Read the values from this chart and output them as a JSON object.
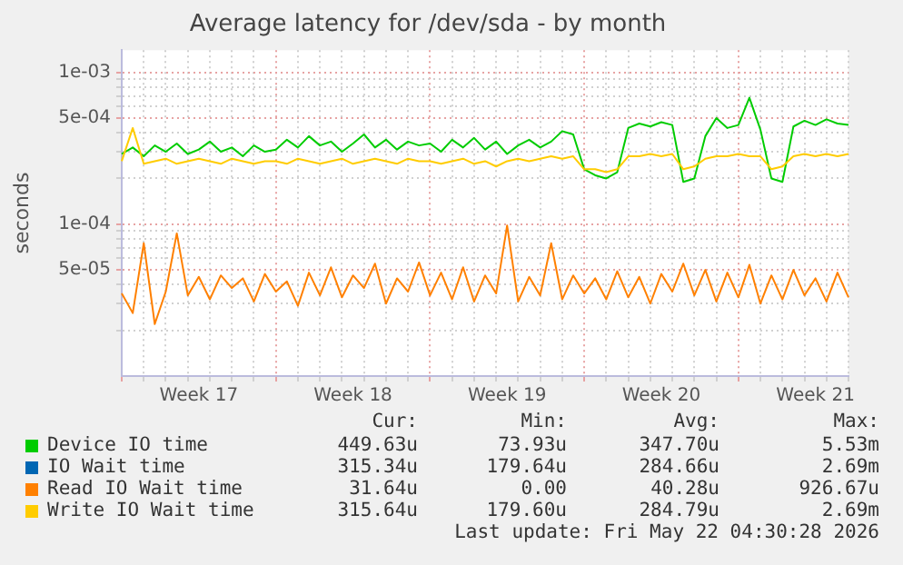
{
  "chart_data": {
    "type": "line",
    "title": "Average latency for /dev/sda - by month",
    "ylabel": "seconds",
    "categories": [
      null,
      null,
      null,
      null,
      null,
      null,
      null,
      "Week 17",
      null,
      null,
      null,
      null,
      null,
      null,
      null,
      null,
      null,
      null,
      null,
      null,
      null,
      "Week 18",
      null,
      null,
      null,
      null,
      null,
      null,
      null,
      null,
      null,
      null,
      null,
      null,
      null,
      "Week 19",
      null,
      null,
      null,
      null,
      null,
      null,
      null,
      null,
      null,
      null,
      null,
      null,
      null,
      "Week 20",
      null,
      null,
      null,
      null,
      null,
      null,
      null,
      null,
      null,
      null,
      null,
      null,
      null,
      "Week 21",
      null,
      null,
      null
    ],
    "series": [
      {
        "name": "Device IO time",
        "color": "#00cc00",
        "values": [
          0.00029,
          0.00032,
          0.00028,
          0.00033,
          0.0003,
          0.00034,
          0.00029,
          0.00031,
          0.00035,
          0.0003,
          0.00032,
          0.00028,
          0.00033,
          0.0003,
          0.00031,
          0.00036,
          0.00032,
          0.00038,
          0.00033,
          0.00035,
          0.0003,
          0.00034,
          0.00039,
          0.00032,
          0.00036,
          0.00031,
          0.00035,
          0.00033,
          0.00034,
          0.0003,
          0.00036,
          0.00032,
          0.00037,
          0.00031,
          0.00035,
          0.00029,
          0.00033,
          0.00036,
          0.00032,
          0.00035,
          0.00041,
          0.00039,
          0.00023,
          0.00021,
          0.0002,
          0.00022,
          0.00043,
          0.00046,
          0.00044,
          0.00047,
          0.00045,
          0.00019,
          0.0002,
          0.00038,
          0.0005,
          0.00043,
          0.00045,
          0.00068,
          0.00042,
          0.0002,
          0.00019,
          0.00044,
          0.00048,
          0.00045,
          0.00049,
          0.00046,
          0.00045
        ]
      },
      {
        "name": "IO Wait time",
        "color": "#0066b3",
        "values": [
          null,
          null,
          null,
          null,
          null,
          null,
          null,
          null,
          null,
          null,
          null,
          null,
          null,
          null,
          null,
          null,
          null,
          null,
          null,
          null,
          null,
          null,
          null,
          null,
          null,
          null,
          null,
          null,
          null,
          null,
          null,
          null,
          null,
          null,
          null,
          null,
          null,
          null,
          null,
          null,
          null,
          null,
          null,
          null,
          null,
          null,
          null,
          null,
          null,
          null,
          null,
          null,
          null,
          null,
          null,
          null,
          null,
          null,
          null,
          null,
          null,
          null,
          null,
          null,
          null,
          null,
          null
        ]
      },
      {
        "name": "Read IO Wait time",
        "color": "#ff8000",
        "values": [
          3.5e-05,
          2.6e-05,
          7.5e-05,
          2.2e-05,
          3.6e-05,
          8.7e-05,
          3.4e-05,
          4.5e-05,
          3.2e-05,
          4.6e-05,
          3.8e-05,
          4.4e-05,
          3.1e-05,
          4.7e-05,
          3.6e-05,
          4.2e-05,
          2.9e-05,
          4.8e-05,
          3.4e-05,
          5.2e-05,
          3.3e-05,
          4.6e-05,
          3.8e-05,
          5.5e-05,
          3e-05,
          4.4e-05,
          3.6e-05,
          5.6e-05,
          3.4e-05,
          4.8e-05,
          3.2e-05,
          5.2e-05,
          3.1e-05,
          4.6e-05,
          3.5e-05,
          9.8e-05,
          3.1e-05,
          4.5e-05,
          3.4e-05,
          7.5e-05,
          3.2e-05,
          4.6e-05,
          3.5e-05,
          4.4e-05,
          3.2e-05,
          4.9e-05,
          3.3e-05,
          4.5e-05,
          3e-05,
          4.7e-05,
          3.6e-05,
          5.5e-05,
          3.4e-05,
          5e-05,
          3.1e-05,
          4.8e-05,
          3.3e-05,
          5.4e-05,
          3e-05,
          4.6e-05,
          3.2e-05,
          5e-05,
          3.4e-05,
          4.4e-05,
          3.1e-05,
          4.8e-05,
          3.3e-05
        ]
      },
      {
        "name": "Write IO Wait time",
        "color": "#ffcc00",
        "values": [
          0.00026,
          0.00043,
          0.00025,
          0.00026,
          0.00027,
          0.00025,
          0.00026,
          0.00027,
          0.00026,
          0.00025,
          0.00027,
          0.00026,
          0.00025,
          0.00026,
          0.00026,
          0.00025,
          0.00027,
          0.00026,
          0.00025,
          0.00026,
          0.00027,
          0.00025,
          0.00026,
          0.00027,
          0.00026,
          0.00025,
          0.00027,
          0.00026,
          0.00026,
          0.00025,
          0.00026,
          0.00027,
          0.00025,
          0.00026,
          0.00024,
          0.00026,
          0.00027,
          0.00026,
          0.00027,
          0.00028,
          0.00027,
          0.00028,
          0.00023,
          0.00023,
          0.00022,
          0.00023,
          0.00028,
          0.00028,
          0.00029,
          0.00028,
          0.00029,
          0.00023,
          0.00024,
          0.00027,
          0.00028,
          0.00028,
          0.00029,
          0.00028,
          0.00028,
          0.00023,
          0.00024,
          0.00028,
          0.00029,
          0.00028,
          0.00029,
          0.00028,
          0.00029
        ]
      }
    ],
    "ylim": [
      1e-05,
      0.0014
    ],
    "yticks": [
      {
        "value": 2e-05,
        "label": null
      },
      {
        "value": 3e-05,
        "label": null
      },
      {
        "value": 4e-05,
        "label": null
      },
      {
        "value": 5e-05,
        "label": "5e-05"
      },
      {
        "value": 6e-05,
        "label": null
      },
      {
        "value": 7e-05,
        "label": null
      },
      {
        "value": 8e-05,
        "label": null
      },
      {
        "value": 9e-05,
        "label": null
      },
      {
        "value": 0.0001,
        "label": "1e-04"
      },
      {
        "value": 0.0002,
        "label": null
      },
      {
        "value": 0.0003,
        "label": null
      },
      {
        "value": 0.0004,
        "label": null
      },
      {
        "value": 0.0005,
        "label": "5e-04"
      },
      {
        "value": 0.0006,
        "label": null
      },
      {
        "value": 0.0007,
        "label": null
      },
      {
        "value": 0.0008,
        "label": null
      },
      {
        "value": 0.0009,
        "label": null
      },
      {
        "value": 0.001,
        "label": "1e-03"
      }
    ],
    "log": "y",
    "grid": true,
    "legend": "bottom",
    "annotations": [
      "Cur:",
      "Min:",
      "Avg:",
      "Max:",
      "449.63u",
      "73.93u",
      "347.70u",
      "5.53m",
      "315.34u",
      "179.64u",
      "284.66u",
      "2.69m",
      "31.64u",
      "0.00",
      "40.28u",
      "926.67u",
      "315.64u",
      "179.60u",
      "284.79u",
      "2.69m",
      "Last update: Fri May 22 04:30:28 2026"
    ]
  }
}
